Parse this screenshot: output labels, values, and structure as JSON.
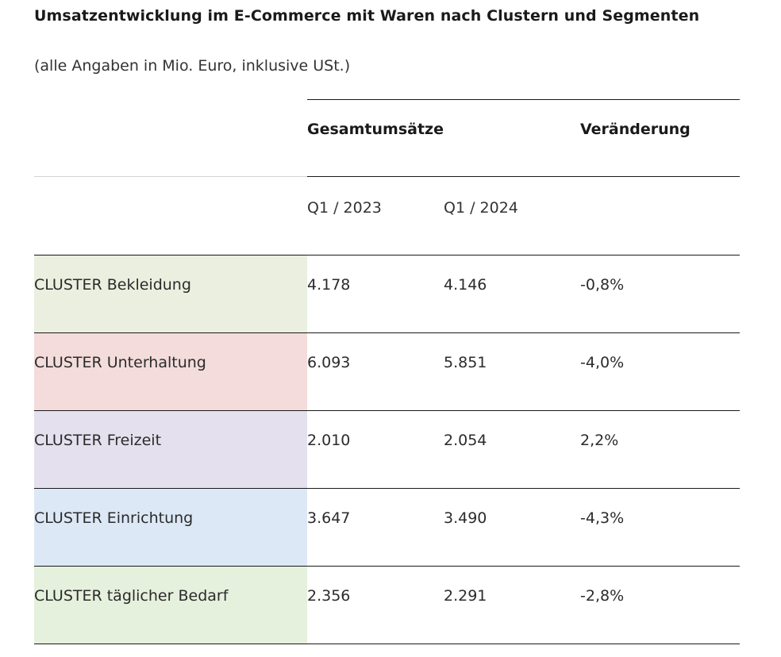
{
  "chart_data": {
    "type": "table",
    "title": "Umsatzentwicklung im E-Commerce mit Waren nach Clustern und Segmenten",
    "subtitle": "(alle Angaben in Mio. Euro, inklusive USt.)",
    "header_groups": [
      "Gesamtumsätze",
      "Veränderung"
    ],
    "columns": [
      "Q1 / 2023",
      "Q1 / 2024"
    ],
    "rows": [
      {
        "label": "CLUSTER Bekleidung",
        "q1_2023": "4.178",
        "q1_2024": "4.146",
        "change": "-0,8%",
        "color": "#eaefdf"
      },
      {
        "label": "CLUSTER Unterhaltung",
        "q1_2023": "6.093",
        "q1_2024": "5.851",
        "change": "-4,0%",
        "color": "#f3dcdb"
      },
      {
        "label": "CLUSTER Freizeit",
        "q1_2023": "2.010",
        "q1_2024": "2.054",
        "change": "2,2%",
        "color": "#e4e0ee"
      },
      {
        "label": "CLUSTER Einrichtung",
        "q1_2023": "3.647",
        "q1_2024": "3.490",
        "change": "-4,3%",
        "color": "#dce8f6"
      },
      {
        "label": "CLUSTER täglicher Bedarf",
        "q1_2023": "2.356",
        "q1_2024": "2.291",
        "change": "-2,8%",
        "color": "#e5f0dd"
      }
    ]
  }
}
